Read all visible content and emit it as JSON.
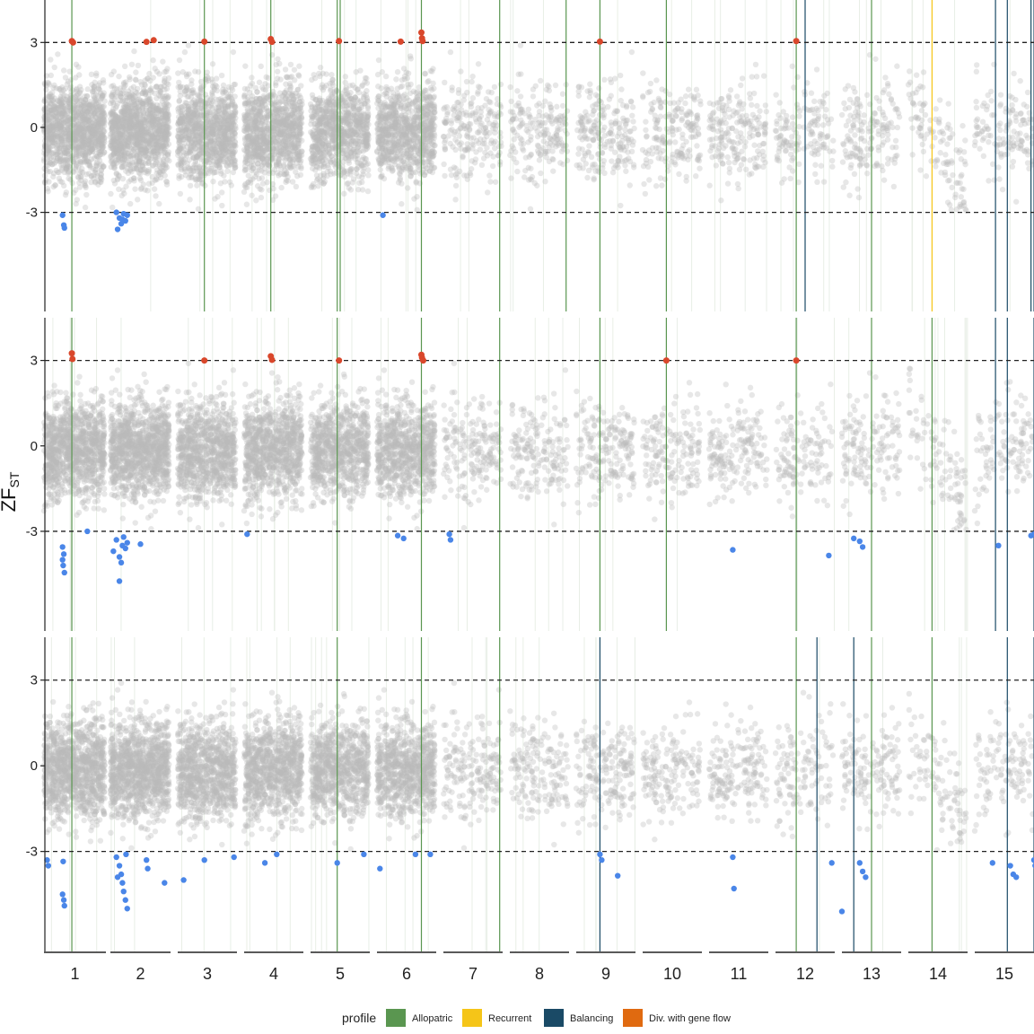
{
  "chart_data": {
    "type": "scatter",
    "title": "",
    "xlabel": "",
    "ylabel": "ZF",
    "ylabel_sub": "ST",
    "ylim": [
      -6.5,
      4.5
    ],
    "yticks": [
      {
        "value": 3,
        "label": "3"
      },
      {
        "value": 0,
        "label": "0"
      },
      {
        "value": -3,
        "label": "-3"
      }
    ],
    "thresholds": [
      3,
      -3
    ],
    "grid": false,
    "legend_position": "bottom",
    "legend": {
      "title": "profile",
      "entries": [
        {
          "label": "Allopatric",
          "color": "#5a9650"
        },
        {
          "label": "Recurrent",
          "color": "#f5c518"
        },
        {
          "label": "Balancing",
          "color": "#1a4a66"
        },
        {
          "label": "Div. with gene flow",
          "color": "#e06a10"
        }
      ]
    },
    "colors": {
      "background_points": "#b9b9b9",
      "high_outlier": "#d9472b",
      "low_outlier": "#4a86e8",
      "threshold_line": "#222222"
    },
    "chromosomes": [
      {
        "label": "1",
        "start": 0.0,
        "end": 1.0,
        "density": 1200
      },
      {
        "label": "2",
        "start": 1.0,
        "end": 2.0,
        "density": 1200
      },
      {
        "label": "3",
        "start": 2.0,
        "end": 3.0,
        "density": 1000
      },
      {
        "label": "4",
        "start": 3.0,
        "end": 4.0,
        "density": 1000
      },
      {
        "label": "5",
        "start": 4.0,
        "end": 5.0,
        "density": 900
      },
      {
        "label": "6",
        "start": 5.0,
        "end": 6.0,
        "density": 900
      },
      {
        "label": "7",
        "start": 6.0,
        "end": 7.0,
        "density": 220
      },
      {
        "label": "8",
        "start": 7.0,
        "end": 8.0,
        "density": 200
      },
      {
        "label": "9",
        "start": 8.0,
        "end": 9.0,
        "density": 220
      },
      {
        "label": "10",
        "start": 9.0,
        "end": 10.0,
        "density": 190
      },
      {
        "label": "11",
        "start": 10.0,
        "end": 11.0,
        "density": 200
      },
      {
        "label": "12",
        "start": 11.0,
        "end": 12.0,
        "density": 150
      },
      {
        "label": "13",
        "start": 12.0,
        "end": 13.0,
        "density": 170
      },
      {
        "label": "14",
        "start": 13.0,
        "end": 14.0,
        "density": 120
      },
      {
        "label": "15",
        "start": 14.0,
        "end": 15.0,
        "density": 140
      }
    ],
    "panels": [
      {
        "high_outliers": [
          [
            0.45,
            3.05
          ],
          [
            0.47,
            3.0
          ],
          [
            1.6,
            3.02
          ],
          [
            1.72,
            3.08
          ],
          [
            2.45,
            3.03
          ],
          [
            3.45,
            3.12
          ],
          [
            3.47,
            3.02
          ],
          [
            4.48,
            3.05
          ],
          [
            5.4,
            3.03
          ],
          [
            5.75,
            3.35
          ],
          [
            5.76,
            3.15
          ],
          [
            5.77,
            3.05
          ],
          [
            8.4,
            3.03
          ],
          [
            11.35,
            3.05
          ]
        ],
        "low_outliers": [
          [
            0.3,
            -3.1
          ],
          [
            0.32,
            -3.45
          ],
          [
            0.33,
            -3.55
          ],
          [
            1.1,
            -3.0
          ],
          [
            1.15,
            -3.2
          ],
          [
            1.18,
            -3.4
          ],
          [
            1.2,
            -3.25
          ],
          [
            1.22,
            -3.05
          ],
          [
            1.25,
            -3.3
          ],
          [
            1.28,
            -3.1
          ],
          [
            1.12,
            -3.6
          ],
          [
            5.1,
            -3.1
          ]
        ],
        "signal_lines": [
          [
            0.45,
            "#5a9650"
          ],
          [
            2.45,
            "#5a9650"
          ],
          [
            3.45,
            "#5a9650"
          ],
          [
            4.45,
            "#5a9650"
          ],
          [
            4.5,
            "#5a9650"
          ],
          [
            5.75,
            "#5a9650"
          ],
          [
            6.95,
            "#5a9650"
          ],
          [
            7.95,
            "#5a9650"
          ],
          [
            8.4,
            "#5a9650"
          ],
          [
            9.4,
            "#5a9650"
          ],
          [
            11.35,
            "#5a9650"
          ],
          [
            11.5,
            "#1a4a66"
          ],
          [
            12.5,
            "#5a9650"
          ],
          [
            13.4,
            "#f5c518"
          ],
          [
            14.35,
            "#1a4a66"
          ],
          [
            14.55,
            "#1a4a66"
          ],
          [
            14.95,
            "#1a4a66"
          ],
          [
            15.0,
            "#1a4a66"
          ],
          [
            15.35,
            "#5a9650"
          ]
        ]
      },
      {
        "high_outliers": [
          [
            0.45,
            3.25
          ],
          [
            0.46,
            3.05
          ],
          [
            2.45,
            3.0
          ],
          [
            3.45,
            3.15
          ],
          [
            3.47,
            3.02
          ],
          [
            4.48,
            3.0
          ],
          [
            5.75,
            3.2
          ],
          [
            5.76,
            3.1
          ],
          [
            5.78,
            3.0
          ],
          [
            9.4,
            3.0
          ],
          [
            11.35,
            3.0
          ]
        ],
        "low_outliers": [
          [
            0.3,
            -3.55
          ],
          [
            0.32,
            -3.8
          ],
          [
            0.3,
            -4.0
          ],
          [
            0.31,
            -4.2
          ],
          [
            0.33,
            -4.45
          ],
          [
            0.7,
            -3.0
          ],
          [
            1.05,
            -3.7
          ],
          [
            1.1,
            -3.3
          ],
          [
            1.15,
            -3.9
          ],
          [
            1.18,
            -4.1
          ],
          [
            1.2,
            -3.5
          ],
          [
            1.22,
            -3.2
          ],
          [
            1.25,
            -3.6
          ],
          [
            1.28,
            -3.4
          ],
          [
            1.15,
            -4.75
          ],
          [
            1.5,
            -3.45
          ],
          [
            3.05,
            -3.1
          ],
          [
            5.35,
            -3.15
          ],
          [
            5.45,
            -3.25
          ],
          [
            6.1,
            -3.1
          ],
          [
            6.12,
            -3.3
          ],
          [
            10.4,
            -3.65
          ],
          [
            11.9,
            -3.85
          ],
          [
            12.2,
            -3.25
          ],
          [
            12.3,
            -3.35
          ],
          [
            12.35,
            -3.55
          ],
          [
            14.4,
            -3.5
          ],
          [
            14.95,
            -3.15
          ],
          [
            15.0,
            -3.1
          ]
        ],
        "signal_lines": [
          [
            0.45,
            "#5a9650"
          ],
          [
            4.45,
            "#5a9650"
          ],
          [
            5.75,
            "#5a9650"
          ],
          [
            6.95,
            "#5a9650"
          ],
          [
            8.4,
            "#5a9650"
          ],
          [
            9.4,
            "#5a9650"
          ],
          [
            11.35,
            "#5a9650"
          ],
          [
            12.5,
            "#5a9650"
          ],
          [
            13.4,
            "#5a9650"
          ],
          [
            14.35,
            "#1a4a66"
          ],
          [
            14.55,
            "#1a4a66"
          ],
          [
            15.0,
            "#1a4a66"
          ],
          [
            15.35,
            "#5a9650"
          ]
        ]
      },
      {
        "high_outliers": [],
        "low_outliers": [
          [
            0.05,
            -3.3
          ],
          [
            0.07,
            -3.5
          ],
          [
            0.3,
            -4.5
          ],
          [
            0.32,
            -4.7
          ],
          [
            0.33,
            -4.9
          ],
          [
            0.31,
            -3.35
          ],
          [
            1.1,
            -3.2
          ],
          [
            1.15,
            -3.5
          ],
          [
            1.18,
            -3.8
          ],
          [
            1.2,
            -4.1
          ],
          [
            1.22,
            -4.4
          ],
          [
            1.25,
            -4.7
          ],
          [
            1.28,
            -5.0
          ],
          [
            1.12,
            -3.9
          ],
          [
            1.26,
            -3.1
          ],
          [
            1.6,
            -3.3
          ],
          [
            1.62,
            -3.6
          ],
          [
            1.9,
            -4.1
          ],
          [
            2.45,
            -3.3
          ],
          [
            2.1,
            -4.0
          ],
          [
            2.95,
            -3.2
          ],
          [
            3.35,
            -3.4
          ],
          [
            3.55,
            -3.1
          ],
          [
            4.45,
            -3.4
          ],
          [
            4.9,
            -3.1
          ],
          [
            5.05,
            -3.6
          ],
          [
            5.65,
            -3.1
          ],
          [
            5.9,
            -3.1
          ],
          [
            8.4,
            -3.1
          ],
          [
            8.43,
            -3.3
          ],
          [
            8.7,
            -3.85
          ],
          [
            10.4,
            -3.2
          ],
          [
            10.42,
            -4.3
          ],
          [
            11.95,
            -3.4
          ],
          [
            12.0,
            -5.1
          ],
          [
            12.3,
            -3.4
          ],
          [
            12.35,
            -3.7
          ],
          [
            12.4,
            -3.9
          ],
          [
            14.3,
            -3.4
          ],
          [
            14.6,
            -3.5
          ],
          [
            14.65,
            -3.8
          ],
          [
            14.7,
            -3.9
          ],
          [
            15.0,
            -3.3
          ],
          [
            15.02,
            -3.5
          ]
        ],
        "signal_lines": [
          [
            0.45,
            "#5a9650"
          ],
          [
            4.45,
            "#5a9650"
          ],
          [
            5.75,
            "#5a9650"
          ],
          [
            6.95,
            "#5a9650"
          ],
          [
            8.4,
            "#1a4a66"
          ],
          [
            11.35,
            "#5a9650"
          ],
          [
            11.7,
            "#1a4a66"
          ],
          [
            12.2,
            "#1a4a66"
          ],
          [
            12.5,
            "#5a9650"
          ],
          [
            13.4,
            "#5a9650"
          ],
          [
            14.55,
            "#1a4a66"
          ],
          [
            15.0,
            "#1a4a66"
          ]
        ]
      }
    ]
  }
}
